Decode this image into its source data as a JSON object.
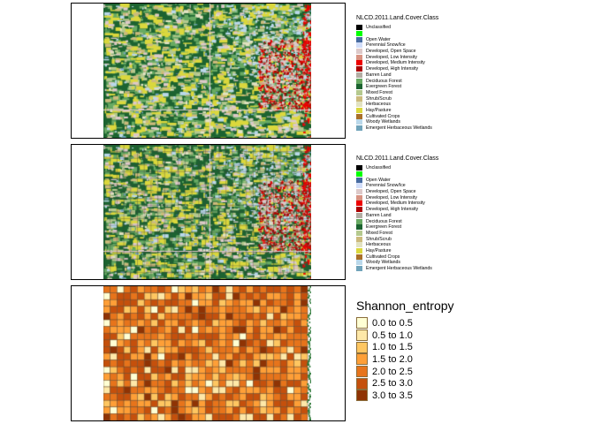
{
  "panels": {
    "raw": {
      "legend_title": "NLCD.2011.Land.Cover.Class"
    },
    "grid": {
      "legend_title": "NLCD.2011.Land.Cover.Class"
    },
    "entropy": {
      "legend_title": "Shannon_entropy"
    }
  },
  "landcover_classes": [
    {
      "label": "Unclassified",
      "color": "#000000"
    },
    {
      "label": "",
      "color": "#00ff00"
    },
    {
      "label": "Open Water",
      "color": "#476ba0"
    },
    {
      "label": "Perennial Snow/Ice",
      "color": "#d1ddf9"
    },
    {
      "label": "Developed, Open Space",
      "color": "#ddc9c9"
    },
    {
      "label": "Developed, Low Intensity",
      "color": "#d89382"
    },
    {
      "label": "Developed, Medium Intensity",
      "color": "#ed0000"
    },
    {
      "label": "Developed, High Intensity",
      "color": "#aa0000"
    },
    {
      "label": "Barren Land",
      "color": "#b2ada3"
    },
    {
      "label": "Deciduous Forest",
      "color": "#68aa63"
    },
    {
      "label": "Evergreen Forest",
      "color": "#1c6330"
    },
    {
      "label": "Mixed Forest",
      "color": "#b5c98e"
    },
    {
      "label": "Shrub/Scrub",
      "color": "#ccba7c"
    },
    {
      "label": "Herbaceous",
      "color": "#e2e2c1"
    },
    {
      "label": "Hay/Pasture",
      "color": "#dbd83d"
    },
    {
      "label": "Cultivated Crops",
      "color": "#aa7028"
    },
    {
      "label": "Woody Wetlands",
      "color": "#bad8ea"
    },
    {
      "label": "Emergent Herbaceous Wetlands",
      "color": "#70a3ba"
    }
  ],
  "entropy_classes": [
    {
      "label": "0.0 to 0.5",
      "color": "#ffffd4"
    },
    {
      "label": "0.5 to 1.0",
      "color": "#fee8a8"
    },
    {
      "label": "1.0 to 1.5",
      "color": "#fec661"
    },
    {
      "label": "1.5 to 2.0",
      "color": "#fe9f37"
    },
    {
      "label": "2.0 to 2.5",
      "color": "#e7741b"
    },
    {
      "label": "2.5 to 3.0",
      "color": "#c5500c"
    },
    {
      "label": "3.0 to 3.5",
      "color": "#8f3304"
    }
  ]
}
